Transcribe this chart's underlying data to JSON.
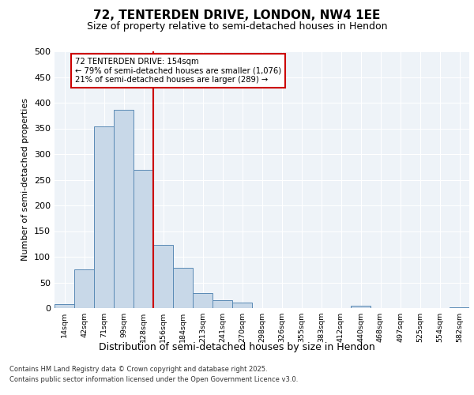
{
  "title_line1": "72, TENTERDEN DRIVE, LONDON, NW4 1EE",
  "title_line2": "Size of property relative to semi-detached houses in Hendon",
  "xlabel": "Distribution of semi-detached houses by size in Hendon",
  "ylabel": "Number of semi-detached properties",
  "categories": [
    "14sqm",
    "42sqm",
    "71sqm",
    "99sqm",
    "128sqm",
    "156sqm",
    "184sqm",
    "213sqm",
    "241sqm",
    "270sqm",
    "298sqm",
    "326sqm",
    "355sqm",
    "383sqm",
    "412sqm",
    "440sqm",
    "468sqm",
    "497sqm",
    "525sqm",
    "554sqm",
    "582sqm"
  ],
  "values": [
    8,
    76,
    354,
    386,
    270,
    123,
    78,
    30,
    16,
    11,
    0,
    0,
    0,
    0,
    0,
    5,
    0,
    0,
    0,
    0,
    2
  ],
  "bar_color": "#c8d8e8",
  "bar_edge_color": "#5a8ab5",
  "vline_color": "#cc0000",
  "annotation_title": "72 TENTERDEN DRIVE: 154sqm",
  "annotation_line1": "← 79% of semi-detached houses are smaller (1,076)",
  "annotation_line2": "21% of semi-detached houses are larger (289) →",
  "annotation_box_color": "#cc0000",
  "ylim": [
    0,
    500
  ],
  "yticks": [
    0,
    50,
    100,
    150,
    200,
    250,
    300,
    350,
    400,
    450,
    500
  ],
  "footnote1": "Contains HM Land Registry data © Crown copyright and database right 2025.",
  "footnote2": "Contains public sector information licensed under the Open Government Licence v3.0.",
  "plot_bg_color": "#eef3f8"
}
